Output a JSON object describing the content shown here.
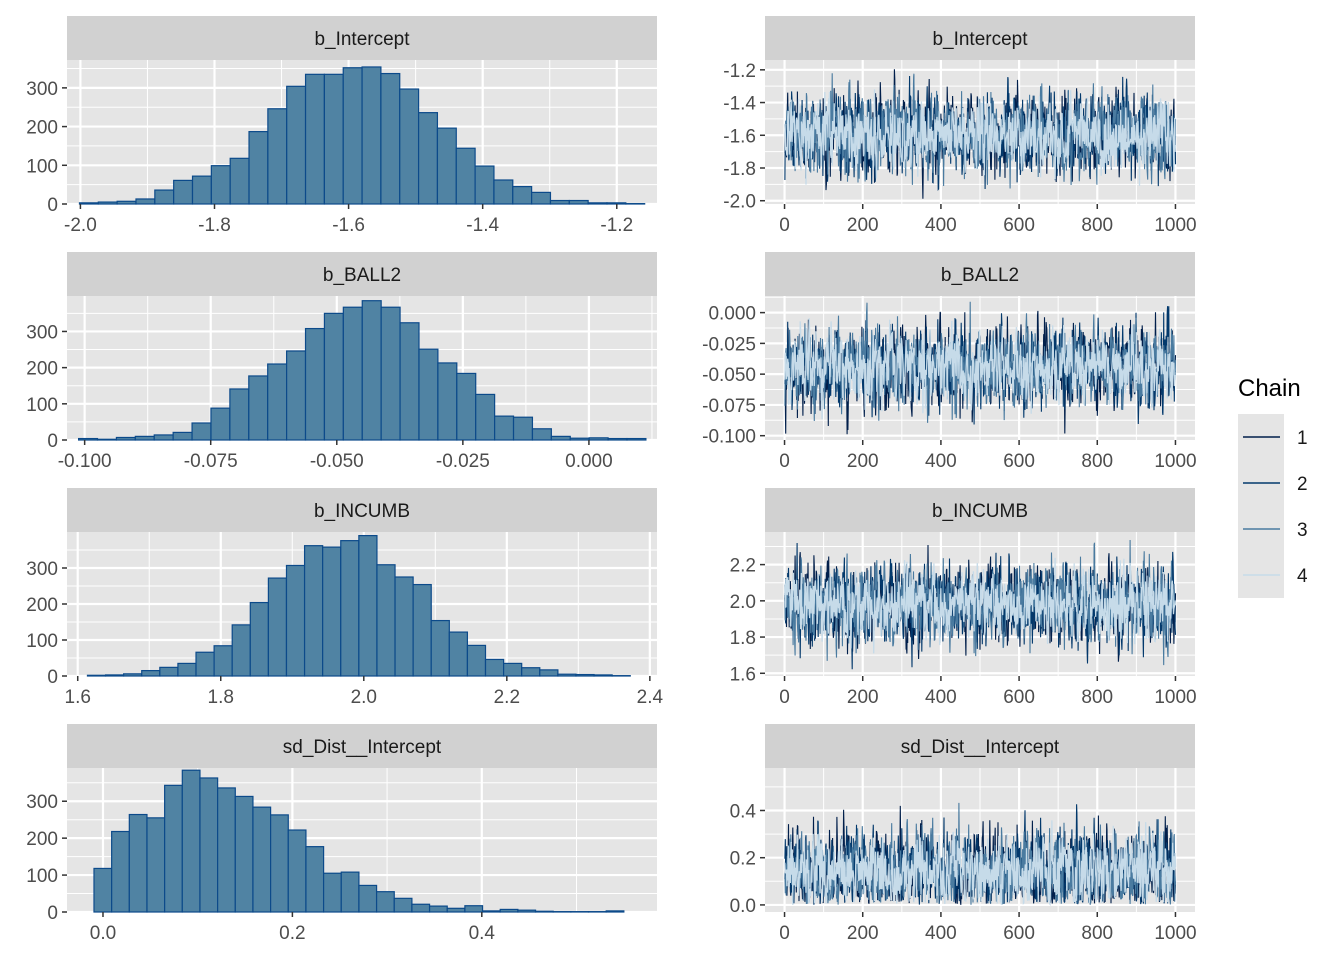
{
  "chart_data": {
    "type": "histogram-trace-grid",
    "title": "",
    "legend": {
      "title": "Chain",
      "position": "right",
      "entries": [
        {
          "label": "1",
          "color": "#011f4b"
        },
        {
          "label": "2",
          "color": "#03396c"
        },
        {
          "label": "3",
          "color": "#4a7ba0"
        },
        {
          "label": "4",
          "color": "#c6dbe9"
        }
      ]
    },
    "colors": {
      "bar_fill": "#5083a3",
      "bar_stroke": "#0c4a8a",
      "panel_bg": "#e5e5e5",
      "strip_bg": "#d1d1d1",
      "grid": "#ffffff"
    },
    "panels": [
      {
        "parameter": "b_Intercept",
        "histogram": {
          "xlim": [
            -2.02,
            -1.14
          ],
          "ylim": [
            0,
            372
          ],
          "x_ticks": [
            -2.0,
            -1.8,
            -1.6,
            -1.4,
            -1.2
          ],
          "x_tick_labels": [
            "-2.0",
            "-1.8",
            "-1.6",
            "-1.4",
            "-1.2"
          ],
          "y_ticks": [
            0,
            100,
            200,
            300
          ],
          "y_tick_labels": [
            "0",
            "100",
            "200",
            "300"
          ],
          "bin_start": -2.0014,
          "bin_width": 0.0281,
          "counts": [
            3,
            5,
            7,
            13,
            36,
            61,
            72,
            99,
            118,
            187,
            246,
            304,
            335,
            335,
            352,
            354,
            337,
            297,
            236,
            196,
            144,
            98,
            62,
            45,
            30,
            9,
            9,
            3,
            3,
            1
          ]
        },
        "trace": {
          "xlim": [
            -50,
            1050
          ],
          "ylim": [
            -2.02,
            -1.14
          ],
          "x_ticks": [
            0,
            200,
            400,
            600,
            800,
            1000
          ],
          "x_tick_labels": [
            "0",
            "200",
            "400",
            "600",
            "800",
            "1000"
          ],
          "y_ticks": [
            -2.0,
            -1.8,
            -1.6,
            -1.4,
            -1.2
          ],
          "y_tick_labels": [
            "-2.0",
            "-1.8",
            "-1.6",
            "-1.4",
            "-1.2"
          ],
          "center": -1.6,
          "spread": 0.13,
          "min": -1.99,
          "max": -1.18
        }
      },
      {
        "parameter": "b_BALL2",
        "histogram": {
          "xlim": [
            -0.1035,
            0.0135
          ],
          "ylim": [
            0,
            398
          ],
          "x_ticks": [
            -0.1,
            -0.075,
            -0.05,
            -0.025,
            0.0
          ],
          "x_tick_labels": [
            "-0.100",
            "-0.075",
            "-0.050",
            "-0.025",
            "0.000"
          ],
          "y_ticks": [
            0,
            100,
            200,
            300
          ],
          "y_tick_labels": [
            "0",
            "100",
            "200",
            "300"
          ],
          "bin_start": -0.1012,
          "bin_width": 0.00375,
          "counts": [
            4,
            2,
            7,
            10,
            14,
            21,
            47,
            88,
            141,
            177,
            210,
            246,
            308,
            350,
            367,
            385,
            367,
            324,
            251,
            213,
            184,
            126,
            66,
            63,
            31,
            10,
            5,
            6,
            4,
            4
          ]
        },
        "trace": {
          "xlim": [
            -50,
            1050
          ],
          "ylim": [
            -0.1035,
            0.0135
          ],
          "x_ticks": [
            0,
            200,
            400,
            600,
            800,
            1000
          ],
          "x_tick_labels": [
            "0",
            "200",
            "400",
            "600",
            "800",
            "1000"
          ],
          "y_ticks": [
            -0.1,
            -0.075,
            -0.05,
            -0.025,
            0.0
          ],
          "y_tick_labels": [
            "-0.100",
            "-0.075",
            "-0.050",
            "-0.025",
            "0.000"
          ],
          "center": -0.045,
          "spread": 0.017,
          "min": -0.099,
          "max": 0.009
        }
      },
      {
        "parameter": "b_INCUMB",
        "histogram": {
          "xlim": [
            1.585,
            2.41
          ],
          "ylim": [
            0,
            400
          ],
          "x_ticks": [
            1.6,
            1.8,
            2.0,
            2.2,
            2.4
          ],
          "x_tick_labels": [
            "1.6",
            "1.8",
            "2.0",
            "2.2",
            "2.4"
          ],
          "y_ticks": [
            0,
            100,
            200,
            300
          ],
          "y_tick_labels": [
            "0",
            "100",
            "200",
            "300"
          ],
          "bin_start": 1.6136,
          "bin_width": 0.0253,
          "counts": [
            2,
            3,
            6,
            15,
            24,
            35,
            66,
            84,
            142,
            204,
            272,
            307,
            362,
            358,
            376,
            390,
            309,
            275,
            254,
            154,
            122,
            85,
            46,
            35,
            23,
            17,
            5,
            4,
            3,
            1
          ]
        },
        "trace": {
          "xlim": [
            -50,
            1050
          ],
          "ylim": [
            1.585,
            2.38
          ],
          "x_ticks": [
            0,
            200,
            400,
            600,
            800,
            1000
          ],
          "x_tick_labels": [
            "0",
            "200",
            "400",
            "600",
            "800",
            "1000"
          ],
          "y_ticks": [
            1.6,
            1.8,
            2.0,
            2.2
          ],
          "y_tick_labels": [
            "1.6",
            "1.8",
            "2.0",
            "2.2"
          ],
          "center": 1.98,
          "spread": 0.11,
          "min": 1.62,
          "max": 2.35
        }
      },
      {
        "parameter": "sd_Dist__Intercept",
        "histogram": {
          "xlim": [
            -0.038,
            0.585
          ],
          "ylim": [
            0,
            390
          ],
          "x_ticks": [
            0.0,
            0.2,
            0.4
          ],
          "x_tick_labels": [
            "0.0",
            "0.2",
            "0.4"
          ],
          "y_ticks": [
            0,
            100,
            200,
            300
          ],
          "y_tick_labels": [
            "0",
            "100",
            "200",
            "300"
          ],
          "bin_start": -0.0095,
          "bin_width": 0.01865,
          "counts": [
            118,
            218,
            264,
            255,
            343,
            384,
            363,
            336,
            313,
            284,
            263,
            222,
            177,
            105,
            108,
            72,
            55,
            37,
            21,
            16,
            10,
            17,
            3,
            7,
            5,
            2,
            1,
            1,
            1,
            3
          ]
        },
        "trace": {
          "xlim": [
            -50,
            1050
          ],
          "ylim": [
            -0.03,
            0.58
          ],
          "x_ticks": [
            0,
            200,
            400,
            600,
            800,
            1000
          ],
          "x_tick_labels": [
            "0",
            "200",
            "400",
            "600",
            "800",
            "1000"
          ],
          "y_ticks": [
            0.0,
            0.2,
            0.4
          ],
          "y_tick_labels": [
            "0.0",
            "0.2",
            "0.4"
          ],
          "center": 0.14,
          "spread": 0.09,
          "min": 0.0,
          "max": 0.54
        }
      }
    ]
  }
}
